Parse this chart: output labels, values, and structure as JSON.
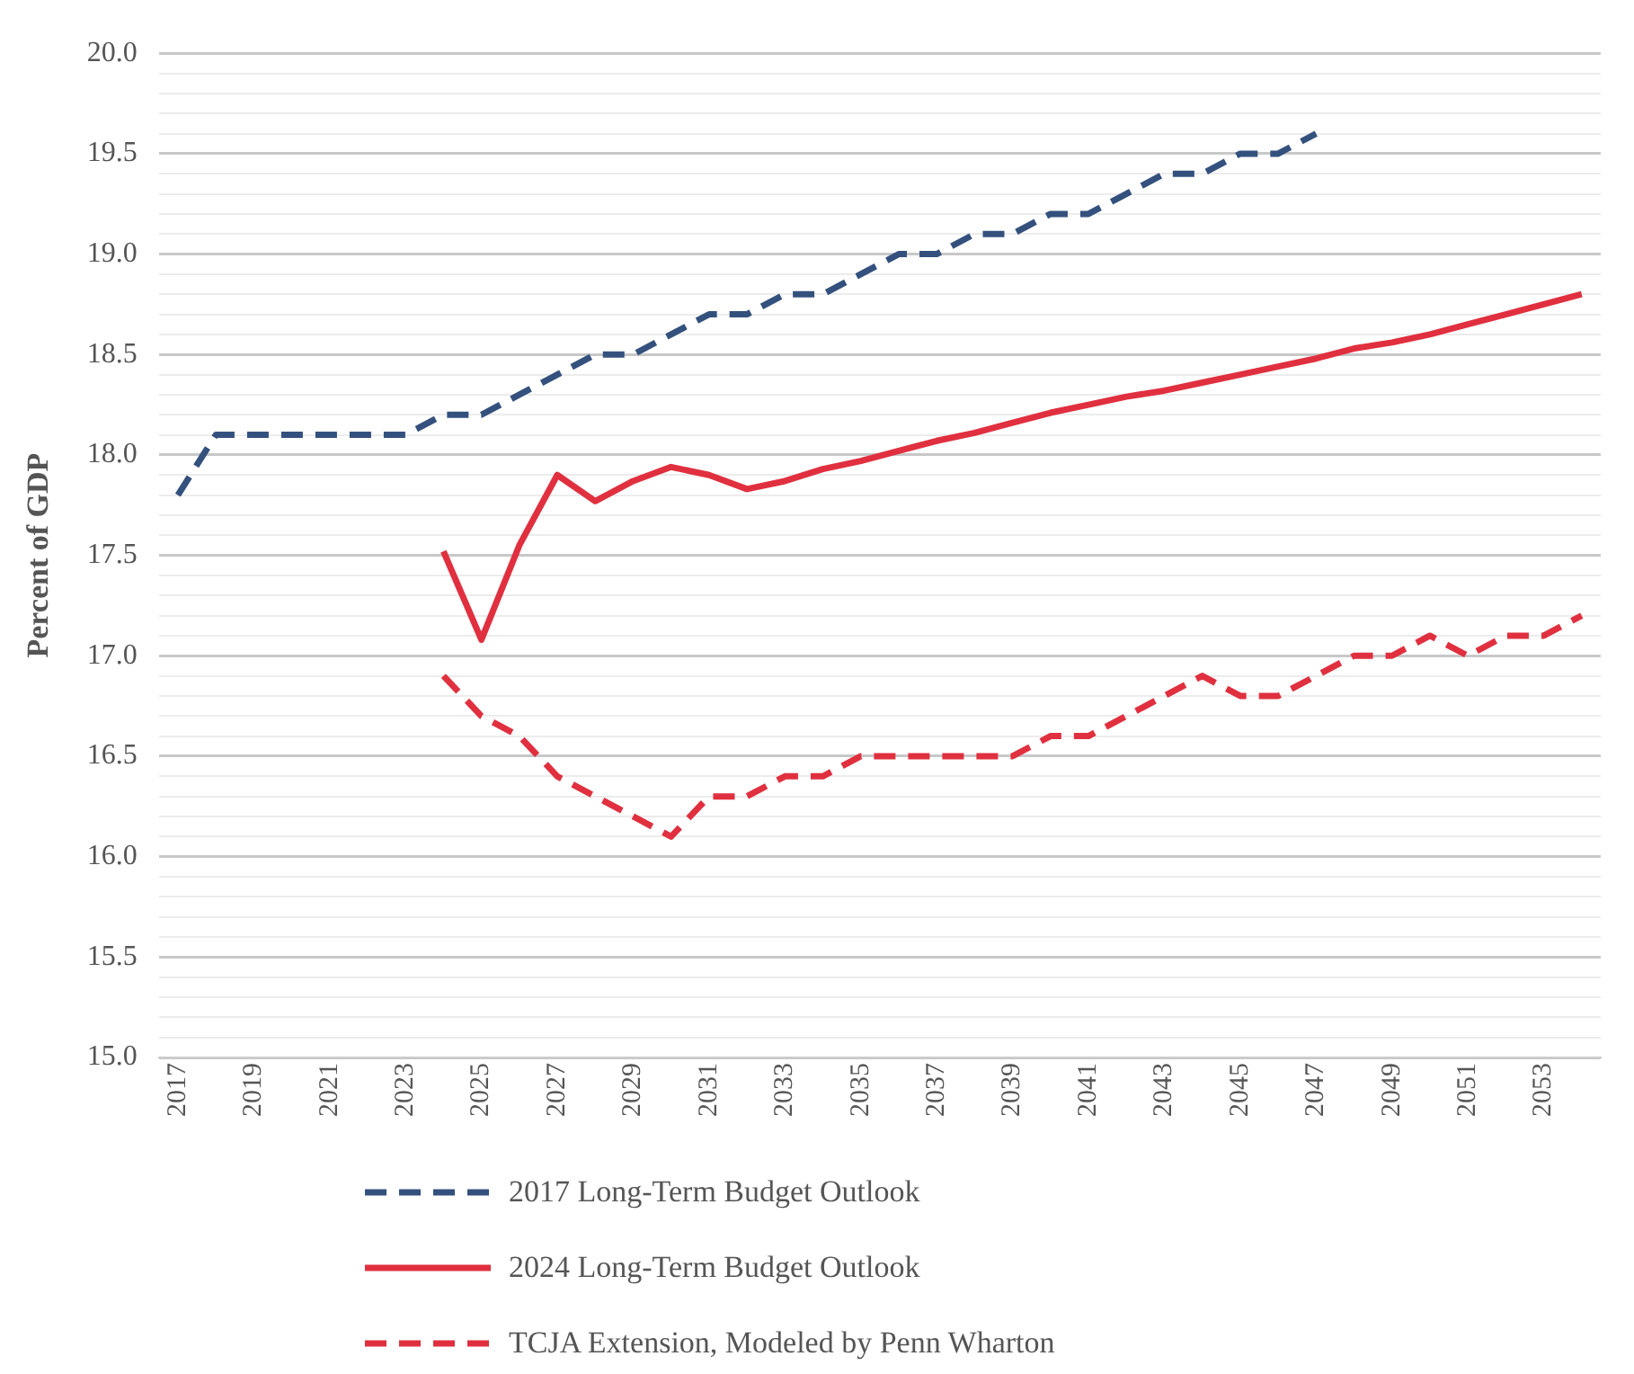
{
  "chart_data": {
    "type": "line",
    "ylabel": "Percent of GDP",
    "categories": [
      "2017",
      null,
      "2019",
      null,
      "2021",
      null,
      "2023",
      null,
      "2025",
      null,
      "2027",
      null,
      "2029",
      null,
      "2031",
      null,
      "2033",
      null,
      "2035",
      null,
      "2037",
      null,
      "2039",
      null,
      "2041",
      null,
      "2043",
      null,
      "2045",
      null,
      "2047",
      null,
      "2049",
      null,
      "2051",
      null,
      "2053",
      null
    ],
    "series": [
      {
        "name": "2017 Long-Term Budget Outlook",
        "color": "#34517e",
        "line_style": "dashed",
        "values": [
          17.8,
          18.1,
          18.1,
          18.1,
          18.1,
          18.1,
          18.1,
          18.2,
          18.2,
          18.3,
          18.4,
          18.5,
          18.5,
          18.6,
          18.7,
          18.7,
          18.8,
          18.8,
          18.9,
          19.0,
          19.0,
          19.1,
          19.1,
          19.2,
          19.2,
          19.3,
          19.4,
          19.4,
          19.5,
          19.5,
          19.6,
          null,
          null,
          null,
          null,
          null,
          null,
          null
        ]
      },
      {
        "name": "2024 Long-Term Budget Outlook",
        "color": "#e0303f",
        "line_style": "solid",
        "values": [
          null,
          null,
          null,
          null,
          null,
          null,
          null,
          17.52,
          17.08,
          17.55,
          17.9,
          17.77,
          17.87,
          17.94,
          17.9,
          17.83,
          17.87,
          17.93,
          17.97,
          18.02,
          18.07,
          18.11,
          18.16,
          18.21,
          18.25,
          18.29,
          18.32,
          18.36,
          18.4,
          18.44,
          18.48,
          18.53,
          18.56,
          18.6,
          18.65,
          18.7,
          18.75,
          18.8
        ]
      },
      {
        "name": "TCJA Extension, Modeled by Penn Wharton",
        "color": "#e0303f",
        "line_style": "dashed",
        "values": [
          null,
          null,
          null,
          null,
          null,
          null,
          null,
          16.9,
          16.7,
          16.6,
          16.4,
          16.3,
          16.2,
          16.1,
          16.3,
          16.3,
          16.4,
          16.4,
          16.5,
          16.5,
          16.5,
          16.5,
          16.5,
          16.6,
          16.6,
          16.7,
          16.8,
          16.9,
          16.8,
          16.8,
          16.9,
          17.0,
          17.0,
          17.1,
          17.0,
          17.1,
          17.1,
          17.2
        ]
      }
    ],
    "ylim": [
      15,
      20
    ],
    "yticks": [
      {
        "value": 15,
        "label": "15.0"
      },
      {
        "value": 15.1,
        "label": null
      },
      {
        "value": 15.2,
        "label": null
      },
      {
        "value": 15.3,
        "label": null
      },
      {
        "value": 15.4,
        "label": null
      },
      {
        "value": 15.5,
        "label": "15.5"
      },
      {
        "value": 15.6,
        "label": null
      },
      {
        "value": 15.7,
        "label": null
      },
      {
        "value": 15.8,
        "label": null
      },
      {
        "value": 15.9,
        "label": null
      },
      {
        "value": 16,
        "label": "16.0"
      },
      {
        "value": 16.1,
        "label": null
      },
      {
        "value": 16.2,
        "label": null
      },
      {
        "value": 16.3,
        "label": null
      },
      {
        "value": 16.4,
        "label": null
      },
      {
        "value": 16.5,
        "label": "16.5"
      },
      {
        "value": 16.6,
        "label": null
      },
      {
        "value": 16.7,
        "label": null
      },
      {
        "value": 16.8,
        "label": null
      },
      {
        "value": 16.9,
        "label": null
      },
      {
        "value": 17,
        "label": "17.0"
      },
      {
        "value": 17.1,
        "label": null
      },
      {
        "value": 17.2,
        "label": null
      },
      {
        "value": 17.3,
        "label": null
      },
      {
        "value": 17.4,
        "label": null
      },
      {
        "value": 17.5,
        "label": "17.5"
      },
      {
        "value": 17.6,
        "label": null
      },
      {
        "value": 17.7,
        "label": null
      },
      {
        "value": 17.8,
        "label": null
      },
      {
        "value": 17.9,
        "label": null
      },
      {
        "value": 18,
        "label": "18.0"
      },
      {
        "value": 18.1,
        "label": null
      },
      {
        "value": 18.2,
        "label": null
      },
      {
        "value": 18.3,
        "label": null
      },
      {
        "value": 18.4,
        "label": null
      },
      {
        "value": 18.5,
        "label": "18.5"
      },
      {
        "value": 18.6,
        "label": null
      },
      {
        "value": 18.7,
        "label": null
      },
      {
        "value": 18.8,
        "label": null
      },
      {
        "value": 18.9,
        "label": null
      },
      {
        "value": 19,
        "label": "19.0"
      },
      {
        "value": 19.1,
        "label": null
      },
      {
        "value": 19.2,
        "label": null
      },
      {
        "value": 19.3,
        "label": null
      },
      {
        "value": 19.4,
        "label": null
      },
      {
        "value": 19.5,
        "label": "19.5"
      },
      {
        "value": 19.6,
        "label": null
      },
      {
        "value": 19.7,
        "label": null
      },
      {
        "value": 19.8,
        "label": null
      },
      {
        "value": 19.9,
        "label": null
      },
      {
        "value": 20,
        "label": "20.0"
      }
    ],
    "grid": "y",
    "legend": "bottom",
    "marker": "none"
  }
}
